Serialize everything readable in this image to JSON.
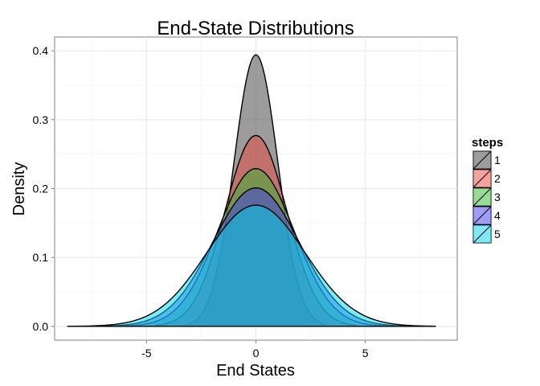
{
  "chart_data": {
    "type": "area",
    "title": "End-State Distributions",
    "xlabel": "End States",
    "ylabel": "Density",
    "xlim": [
      -9.2,
      9.2
    ],
    "ylim": [
      -0.02,
      0.42
    ],
    "x_ticks": [
      -5,
      0,
      5
    ],
    "y_ticks": [
      0.0,
      0.1,
      0.2,
      0.3,
      0.4
    ],
    "y_tick_labels": [
      "0.0",
      "0.1",
      "0.2",
      "0.3",
      "0.4"
    ],
    "grid": true,
    "legend_title": "steps",
    "legend_position": "right",
    "series": [
      {
        "name": "1",
        "color": "#3a3a3a",
        "peak": 0.394,
        "sd": 1.0,
        "x_range": [
          -3.2,
          3.2
        ]
      },
      {
        "name": "2",
        "color": "#e8453c",
        "peak": 0.277,
        "sd": 1.41,
        "x_range": [
          -4.6,
          4.6
        ]
      },
      {
        "name": "3",
        "color": "#2fb82f",
        "peak": 0.229,
        "sd": 1.74,
        "x_range": [
          -6.0,
          6.0
        ]
      },
      {
        "name": "4",
        "color": "#3d3df0",
        "peak": 0.201,
        "sd": 1.98,
        "x_range": [
          -7.0,
          7.0
        ]
      },
      {
        "name": "5",
        "color": "#00d6ee",
        "peak": 0.176,
        "sd": 2.25,
        "x_range": [
          -8.6,
          8.2
        ]
      }
    ]
  }
}
